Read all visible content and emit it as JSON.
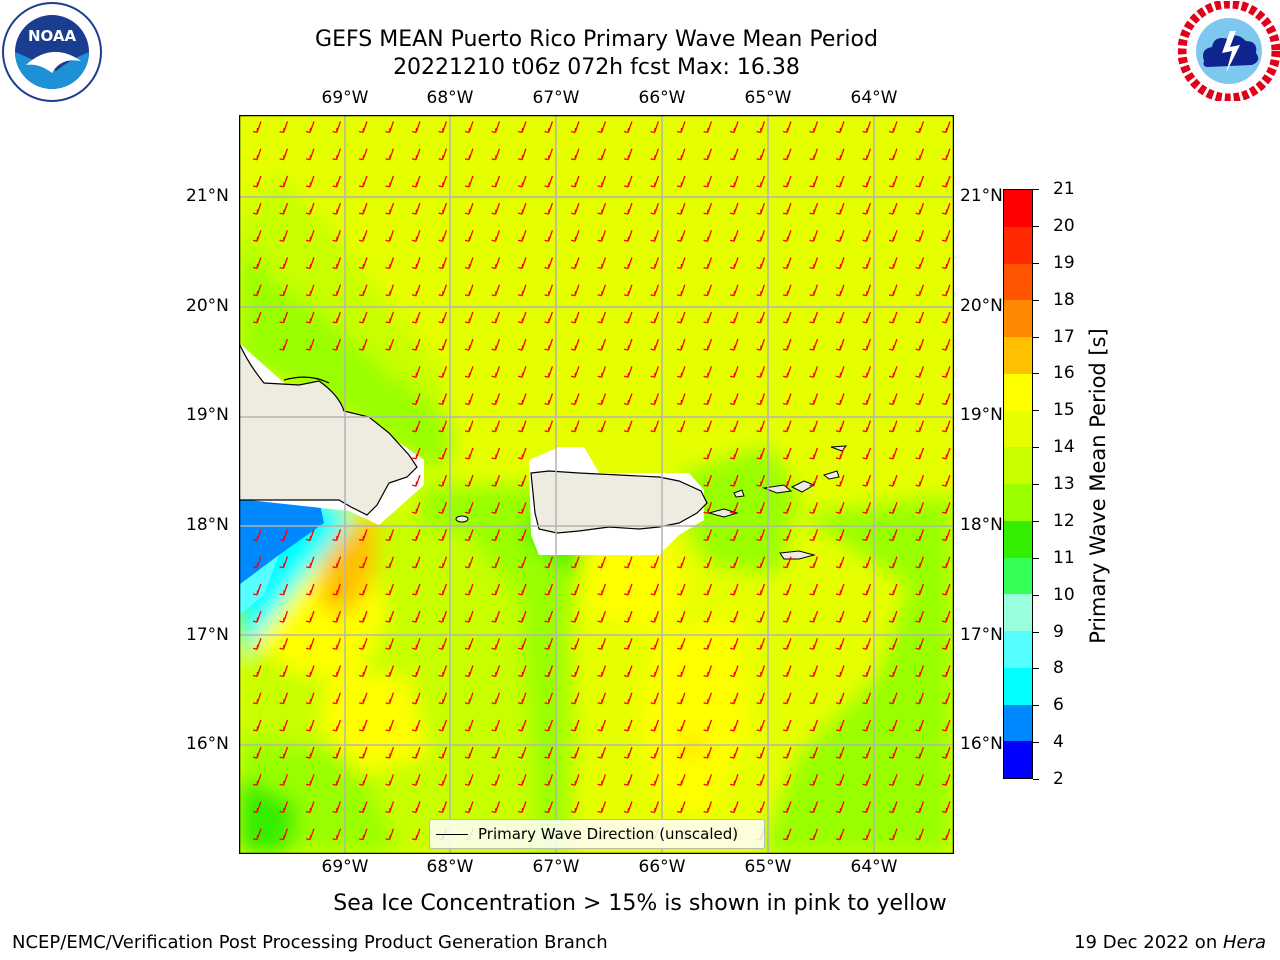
{
  "title": {
    "line1": "GEFS MEAN Puerto Rico Primary Wave Mean Period",
    "line2": "20221210 t06z 072h fcst   Max: 16.38"
  },
  "logos": {
    "left": {
      "name": "noaa-logo",
      "text": "NOAA",
      "ring_text": "NATIONAL OCEANIC AND ATMOSPHERIC ADMINISTRATION · U.S. DEPARTMENT OF COMMERCE"
    },
    "right": {
      "name": "nws-logo",
      "ring_text": "NATIONAL WEATHER SERVICE"
    }
  },
  "axes": {
    "lon_ticks": [
      "69°W",
      "68°W",
      "67°W",
      "66°W",
      "65°W",
      "64°W"
    ],
    "lat_ticks": [
      "21°N",
      "20°N",
      "19°N",
      "18°N",
      "17°N",
      "16°N"
    ]
  },
  "map": {
    "legend_label": "Primary Wave Direction (unscaled)",
    "arrow_color": "#ff0000",
    "land_color": "#eeece0",
    "background_color": "#e6ff00"
  },
  "colorbar": {
    "label": "Primary Wave Mean Period [s]",
    "ticks": [
      "21",
      "20",
      "19",
      "18",
      "17",
      "16",
      "15",
      "14",
      "13",
      "12",
      "11",
      "10",
      "9",
      "8",
      "6",
      "4",
      "2"
    ],
    "colors": [
      "#ff0000",
      "#ff2a00",
      "#ff5500",
      "#ff8800",
      "#ffc000",
      "#ffff00",
      "#e6ff00",
      "#c8ff00",
      "#99ff00",
      "#33ee00",
      "#33ff55",
      "#99ffdd",
      "#55ffff",
      "#00ffff",
      "#0088ff",
      "#0000ff"
    ]
  },
  "caption": "Sea Ice Concentration > 15% is shown in pink to yellow",
  "footer": {
    "left": "NCEP/EMC/Verification Post Processing Product Generation Branch",
    "right_prefix": "19 Dec 2022 on ",
    "right_host": "Hera"
  }
}
